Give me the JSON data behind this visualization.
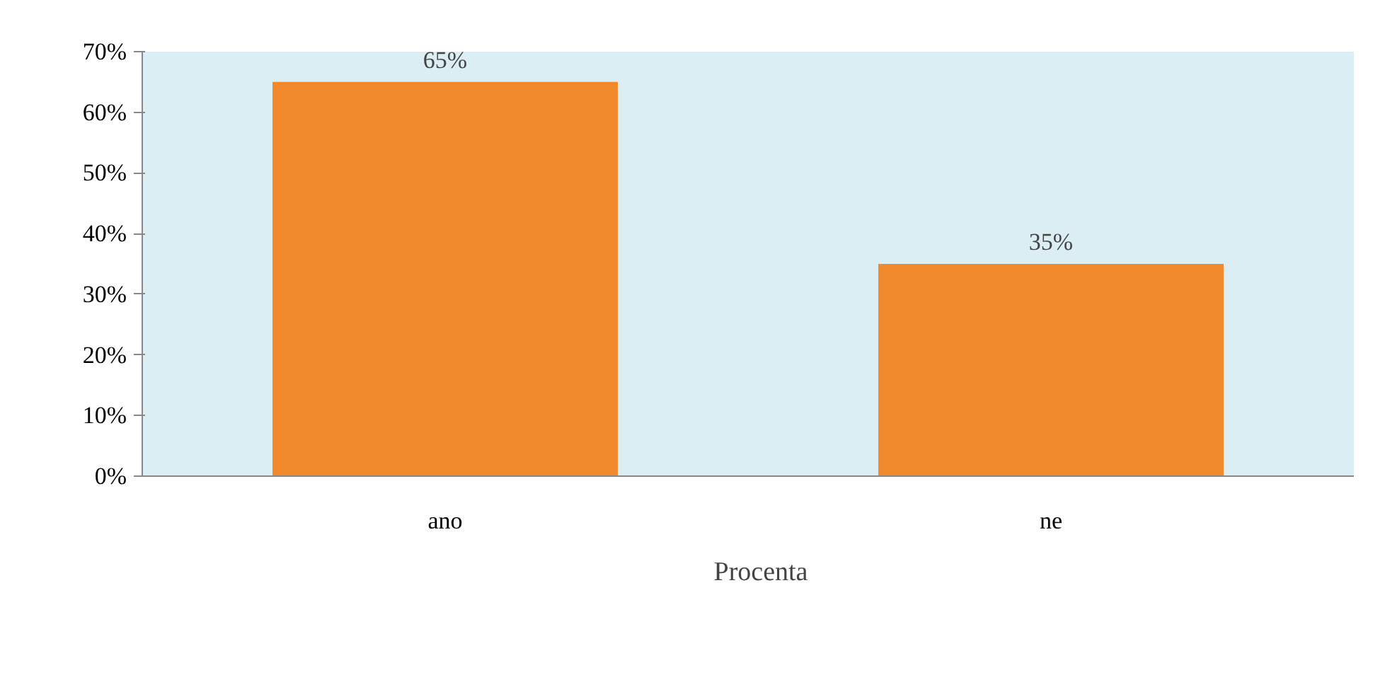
{
  "chart_data": {
    "type": "bar",
    "categories": [
      "ano",
      "ne"
    ],
    "series": [
      {
        "name": "Procenta",
        "color": "#f08a2c",
        "values": [
          65,
          35
        ],
        "value_labels": [
          "65%",
          "35%"
        ]
      }
    ],
    "ylim": [
      0,
      70
    ],
    "yticks": [
      {
        "value": 0,
        "label": "0%"
      },
      {
        "value": 10,
        "label": "10%"
      },
      {
        "value": 20,
        "label": "20%"
      },
      {
        "value": 30,
        "label": "30%"
      },
      {
        "value": 40,
        "label": "40%"
      },
      {
        "value": 50,
        "label": "50%"
      },
      {
        "value": 60,
        "label": "60%"
      },
      {
        "value": 70,
        "label": "70%"
      }
    ],
    "grid": false,
    "legend": "bottom"
  }
}
